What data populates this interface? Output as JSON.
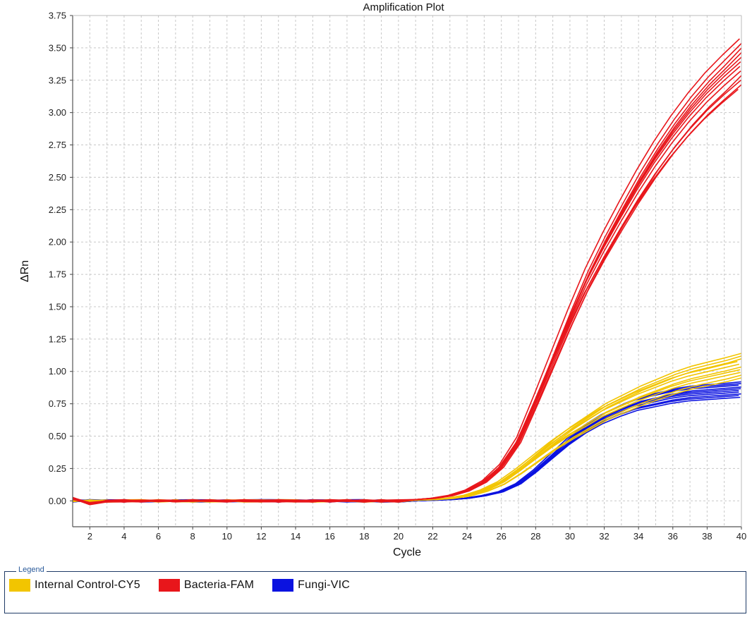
{
  "chart_data": {
    "type": "line",
    "title": "Amplification Plot",
    "xlabel": "Cycle",
    "ylabel": "ΔRn",
    "xlim": [
      1,
      40
    ],
    "ylim": [
      -0.2,
      3.75
    ],
    "x_ticks": [
      2,
      4,
      6,
      8,
      10,
      12,
      14,
      16,
      18,
      20,
      22,
      24,
      26,
      28,
      30,
      32,
      34,
      36,
      38,
      40
    ],
    "y_ticks": [
      0.0,
      0.25,
      0.5,
      0.75,
      1.0,
      1.25,
      1.5,
      1.75,
      2.0,
      2.25,
      2.5,
      2.75,
      3.0,
      3.25,
      3.5,
      3.75
    ],
    "y_tick_labels": [
      "0.00",
      "0.25",
      "0.50",
      "0.75",
      "1.00",
      "1.25",
      "1.50",
      "1.75",
      "2.00",
      "2.25",
      "2.50",
      "2.75",
      "3.00",
      "3.25",
      "3.50",
      "3.75"
    ],
    "grid": true,
    "x": [
      1,
      2,
      3,
      4,
      5,
      6,
      7,
      8,
      9,
      10,
      11,
      12,
      13,
      14,
      15,
      16,
      17,
      18,
      19,
      20,
      21,
      22,
      23,
      24,
      25,
      26,
      27,
      28,
      29,
      30,
      31,
      32,
      33,
      34,
      35,
      36,
      37,
      38,
      39,
      40
    ],
    "series_groups": [
      {
        "name": "Internal Control-CY5",
        "color": "#f2c500",
        "replicates": 10,
        "plateau_range": [
          0.95,
          1.14
        ],
        "values": [
          0,
          0,
          0,
          0,
          0,
          0,
          0,
          0,
          0,
          0,
          0,
          0,
          0,
          0,
          0,
          0,
          0,
          0,
          0,
          0,
          0.005,
          0.01,
          0.02,
          0.04,
          0.08,
          0.14,
          0.23,
          0.33,
          0.43,
          0.52,
          0.6,
          0.68,
          0.74,
          0.8,
          0.85,
          0.9,
          0.94,
          0.97,
          1.0,
          1.03
        ]
      },
      {
        "name": "Bacteria-FAM",
        "color": "#e8161b",
        "replicates": 12,
        "plateau_range": [
          3.18,
          3.57
        ],
        "values": [
          0.02,
          -0.02,
          0,
          0,
          0,
          0,
          0,
          0,
          0,
          0,
          0,
          0,
          0,
          0,
          0,
          0,
          0,
          0,
          0,
          0,
          0.01,
          0.02,
          0.04,
          0.08,
          0.15,
          0.27,
          0.47,
          0.78,
          1.1,
          1.42,
          1.72,
          1.98,
          2.22,
          2.45,
          2.66,
          2.85,
          3.02,
          3.17,
          3.3,
          3.42
        ]
      },
      {
        "name": "Fungi-VIC",
        "color": "#0b12e0",
        "replicates": 10,
        "plateau_range": [
          0.8,
          0.92
        ],
        "values": [
          0,
          0,
          0,
          0,
          0,
          0,
          0,
          0,
          0,
          0,
          0,
          0,
          0,
          0,
          0,
          0,
          0,
          0,
          0,
          0,
          0,
          0.005,
          0.01,
          0.02,
          0.04,
          0.07,
          0.13,
          0.23,
          0.35,
          0.47,
          0.57,
          0.65,
          0.71,
          0.76,
          0.79,
          0.82,
          0.84,
          0.85,
          0.86,
          0.87
        ]
      }
    ]
  },
  "legend": {
    "title": "Legend",
    "items": [
      {
        "label": "Internal Control-CY5",
        "color": "#f2c500"
      },
      {
        "label": "Bacteria-FAM",
        "color": "#e8161b"
      },
      {
        "label": "Fungi-VIC",
        "color": "#0b12e0"
      }
    ]
  }
}
